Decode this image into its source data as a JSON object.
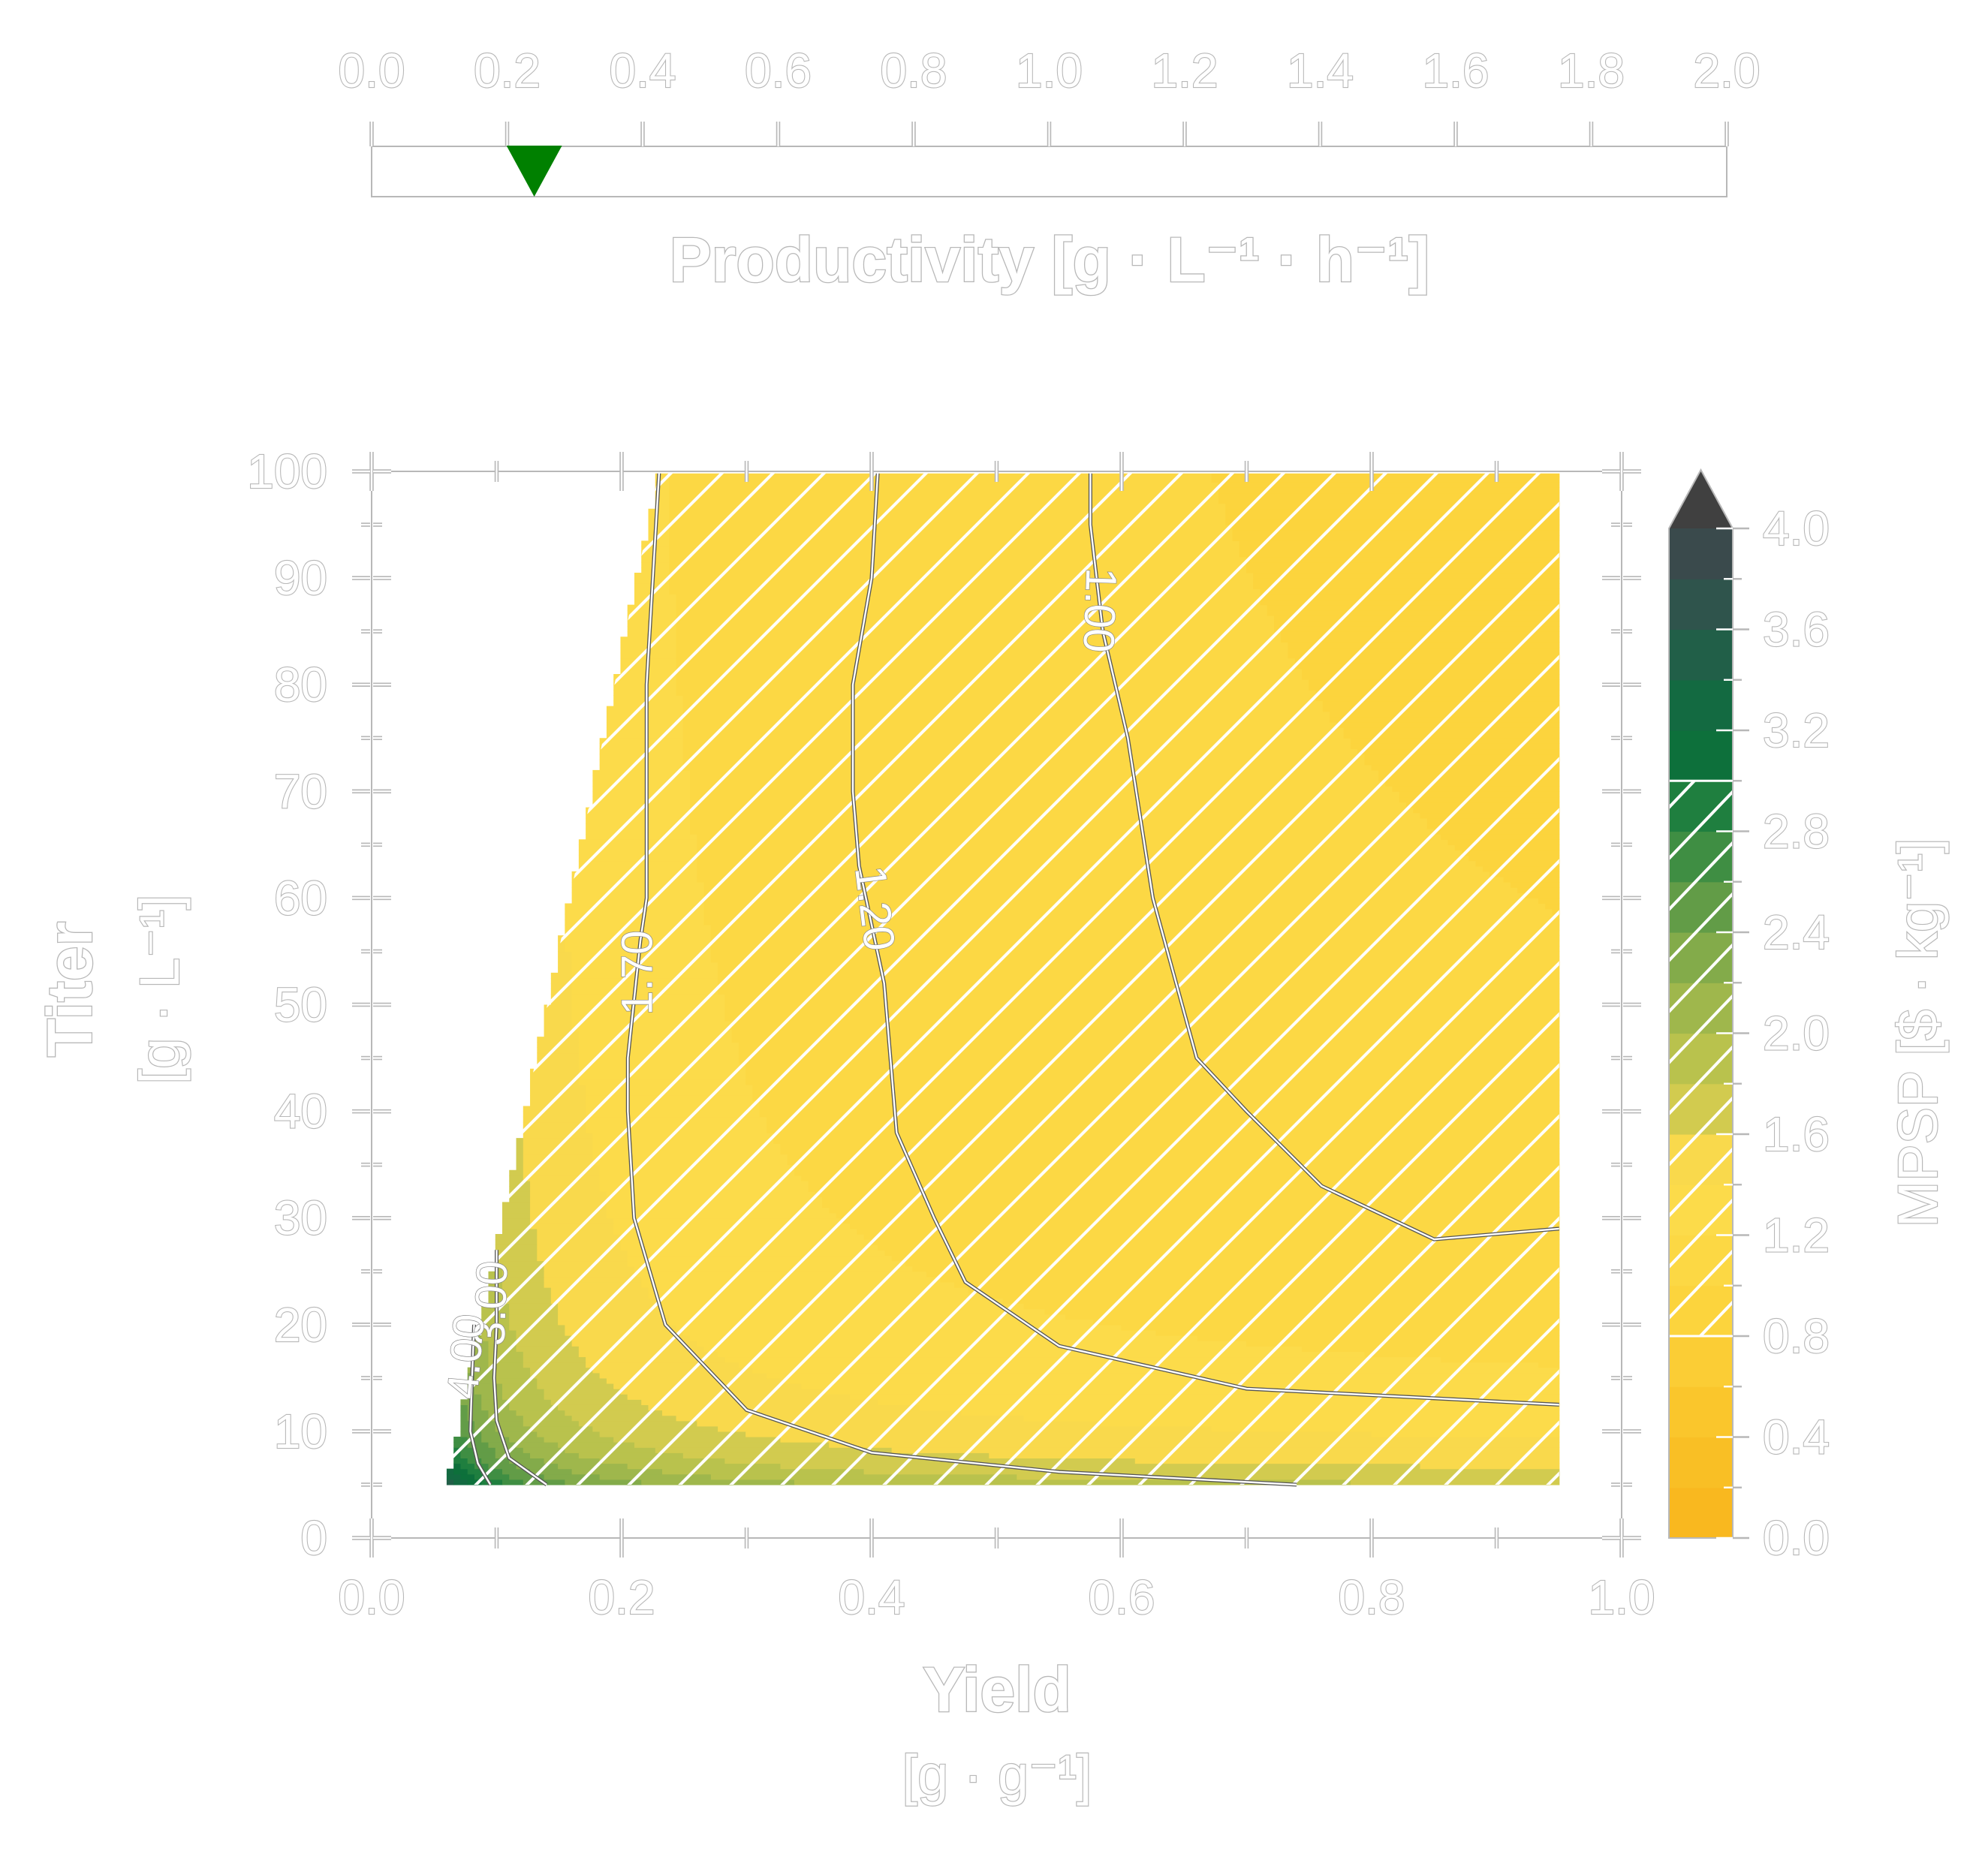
{
  "productivity_axis": {
    "ticks": [
      "0.0",
      "0.2",
      "0.4",
      "0.6",
      "0.8",
      "1.0",
      "1.2",
      "1.4",
      "1.6",
      "1.8",
      "2.0"
    ],
    "min": 0.0,
    "max": 2.0,
    "marker_value": 0.24,
    "marker_color": "#008000",
    "label": "Productivity [g · L⁻¹ · h⁻¹]"
  },
  "chart_data": {
    "type": "heatmap",
    "title": "",
    "x": {
      "label": "Yield",
      "unit": "[g · g⁻¹]",
      "lim": [
        0.0,
        1.0
      ],
      "ticks": [
        "0.0",
        "0.2",
        "0.4",
        "0.6",
        "0.8",
        "1.0"
      ]
    },
    "y": {
      "label": "Titer",
      "unit": "[g · L⁻¹]",
      "lim": [
        0,
        100
      ],
      "ticks": [
        "0",
        "10",
        "20",
        "30",
        "40",
        "50",
        "60",
        "70",
        "80",
        "90",
        "100"
      ]
    },
    "feasible_region": {
      "x_max": 0.95,
      "y_min": 5,
      "y_max": 100,
      "left_boundary": [
        [
          0.06,
          5
        ],
        [
          0.23,
          100
        ]
      ]
    },
    "hatched_range": [
      0.8,
      3.0
    ],
    "colorbar": {
      "label": "MPSP [$ · kg⁻¹]",
      "ticks": [
        "0.0",
        "0.4",
        "0.8",
        "1.2",
        "1.6",
        "2.0",
        "2.4",
        "2.8",
        "3.2",
        "3.6",
        "4.0"
      ],
      "min": 0.0,
      "max": 4.0,
      "extend": "max",
      "levels": [
        0.0,
        0.2,
        0.4,
        0.6,
        0.8,
        1.0,
        1.2,
        1.4,
        1.6,
        1.8,
        2.0,
        2.2,
        2.4,
        2.6,
        2.8,
        3.0,
        3.2,
        3.4,
        3.6,
        3.8,
        4.0
      ],
      "colors": [
        "#f9b81f",
        "#f9bf25",
        "#fac62c",
        "#fbcd35",
        "#fcd43d",
        "#fcd844",
        "#fcdb4a",
        "#f9d94c",
        "#d2cb4f",
        "#b9c24d",
        "#9fb74c",
        "#83ab4a",
        "#629c47",
        "#3f8e43",
        "#1f7f3f",
        "#0d703b",
        "#136a41",
        "#215f48",
        "#2f544c",
        "#3a4a4c"
      ],
      "extend_color": "#404040"
    },
    "contours": [
      {
        "label": "1.00",
        "points": [
          [
            0.575,
            100
          ],
          [
            0.575,
            95
          ],
          [
            0.585,
            85
          ],
          [
            0.605,
            75
          ],
          [
            0.625,
            60
          ],
          [
            0.66,
            45
          ],
          [
            0.7,
            40
          ],
          [
            0.76,
            33
          ],
          [
            0.85,
            28
          ],
          [
            0.95,
            29
          ]
        ]
      },
      {
        "label": "1.20",
        "points": [
          [
            0.405,
            100
          ],
          [
            0.4,
            90
          ],
          [
            0.385,
            80
          ],
          [
            0.385,
            70
          ],
          [
            0.39,
            63
          ],
          [
            0.41,
            52
          ],
          [
            0.415,
            45
          ],
          [
            0.42,
            38
          ],
          [
            0.45,
            30
          ],
          [
            0.475,
            24
          ],
          [
            0.55,
            18
          ],
          [
            0.7,
            14
          ],
          [
            0.95,
            12.5
          ]
        ]
      },
      {
        "label": "1.70",
        "points": [
          [
            0.23,
            100
          ],
          [
            0.225,
            90
          ],
          [
            0.22,
            80
          ],
          [
            0.22,
            60
          ],
          [
            0.215,
            56
          ],
          [
            0.205,
            45
          ],
          [
            0.205,
            40
          ],
          [
            0.21,
            30
          ],
          [
            0.235,
            20
          ],
          [
            0.3,
            12
          ],
          [
            0.4,
            8
          ],
          [
            0.55,
            6.2
          ],
          [
            0.74,
            5
          ]
        ]
      },
      {
        "label": "3.00",
        "points": [
          [
            0.1,
            27
          ],
          [
            0.1,
            20
          ],
          [
            0.098,
            15
          ],
          [
            0.1,
            11
          ],
          [
            0.11,
            7.5
          ],
          [
            0.14,
            5
          ]
        ]
      },
      {
        "label": "4.00",
        "points": [
          [
            0.082,
            20
          ],
          [
            0.08,
            14
          ],
          [
            0.079,
            10
          ],
          [
            0.085,
            7
          ],
          [
            0.095,
            5
          ]
        ]
      }
    ]
  }
}
